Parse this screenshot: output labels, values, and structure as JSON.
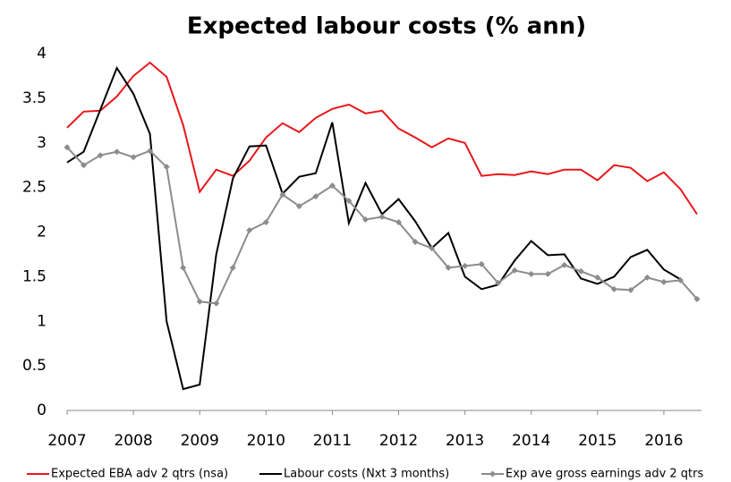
{
  "chart_data": {
    "type": "line",
    "title": "Expected labour costs (% ann)",
    "categories": [
      "2007",
      null,
      null,
      null,
      "2008",
      null,
      null,
      null,
      "2009",
      null,
      null,
      null,
      "2010",
      null,
      null,
      null,
      "2011",
      null,
      null,
      null,
      "2012",
      null,
      null,
      null,
      "2013",
      null,
      null,
      null,
      "2014",
      null,
      null,
      null,
      "2015",
      null,
      null,
      null,
      "2016",
      null,
      null
    ],
    "ylim": [
      0,
      4
    ],
    "yticks": [
      0,
      0.5,
      1,
      1.5,
      2,
      2.5,
      3,
      3.5,
      4
    ],
    "grid": false,
    "legend": "bottom",
    "series": [
      {
        "name": "Expected EBA adv 2 qtrs (nsa)",
        "color": "#e8161b",
        "marker": false,
        "values": [
          3.17,
          3.35,
          3.36,
          3.52,
          3.75,
          3.9,
          3.74,
          3.2,
          2.45,
          2.7,
          2.63,
          2.8,
          3.06,
          3.22,
          3.12,
          3.28,
          3.38,
          3.43,
          3.33,
          3.36,
          3.16,
          3.06,
          2.95,
          3.05,
          3.0,
          2.63,
          2.65,
          2.64,
          2.68,
          2.65,
          2.7,
          2.7,
          2.58,
          2.75,
          2.72,
          2.57,
          2.67,
          2.48,
          2.2
        ]
      },
      {
        "name": "Labour costs (Nxt 3 months)",
        "color": "#000000",
        "marker": false,
        "values": [
          2.78,
          2.9,
          3.37,
          3.84,
          3.55,
          3.1,
          1.0,
          0.24,
          0.29,
          1.75,
          2.6,
          2.96,
          2.97,
          2.43,
          2.62,
          2.66,
          3.23,
          2.1,
          2.55,
          2.2,
          2.37,
          2.12,
          1.82,
          1.99,
          1.5,
          1.36,
          1.41,
          1.68,
          1.9,
          1.74,
          1.75,
          1.48,
          1.42,
          1.5,
          1.72,
          1.8,
          1.58,
          1.47,
          null
        ]
      },
      {
        "name": "Exp ave gross earnings adv 2 qtrs",
        "color": "#8c8c8c",
        "marker": true,
        "values": [
          2.95,
          2.75,
          2.86,
          2.9,
          2.84,
          2.91,
          2.73,
          1.6,
          1.22,
          1.2,
          1.6,
          2.02,
          2.11,
          2.42,
          2.29,
          2.4,
          2.52,
          2.35,
          2.14,
          2.17,
          2.11,
          1.89,
          1.82,
          1.6,
          1.62,
          1.64,
          1.43,
          1.57,
          1.53,
          1.53,
          1.63,
          1.56,
          1.49,
          1.36,
          1.35,
          1.49,
          1.44,
          1.46,
          1.25
        ]
      }
    ]
  }
}
